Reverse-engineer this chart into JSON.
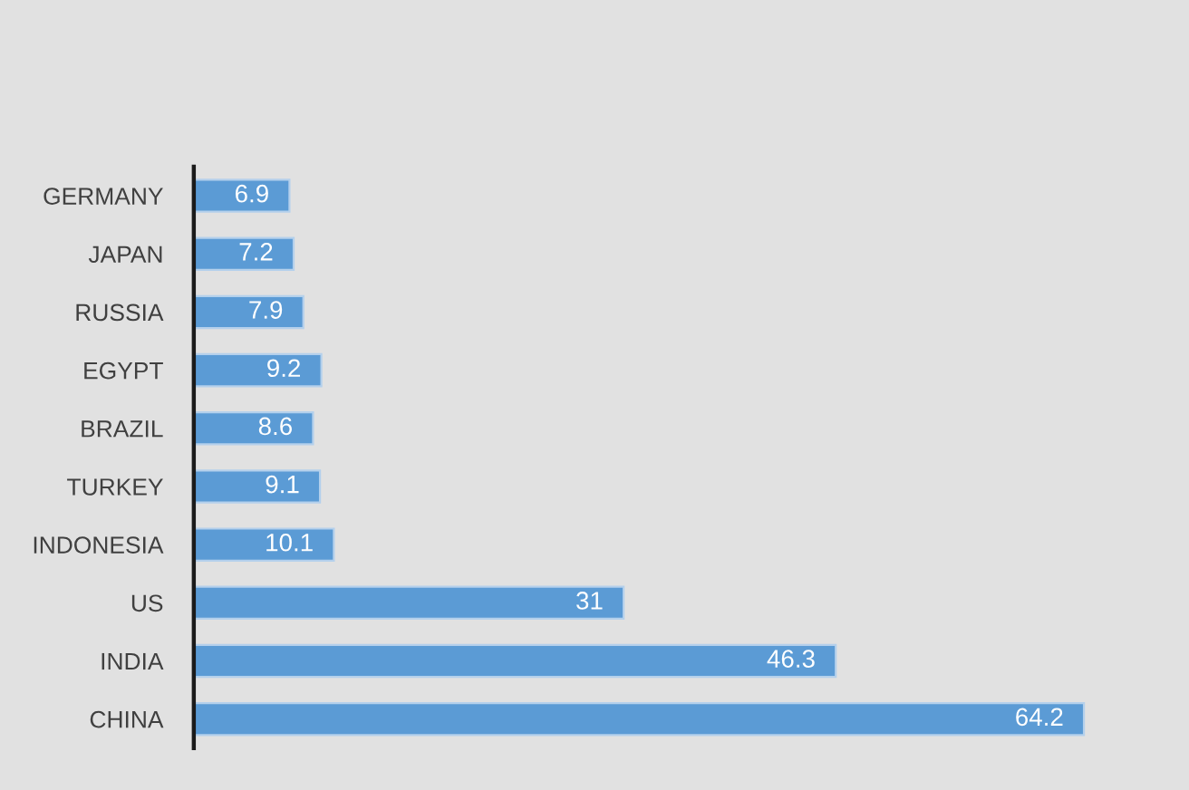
{
  "chart_data": {
    "type": "bar",
    "orientation": "horizontal",
    "categories": [
      "GERMANY",
      "JAPAN",
      "RUSSIA",
      "EGYPT",
      "BRAZIL",
      "TURKEY",
      "INDONESIA",
      "US",
      "INDIA",
      "CHINA"
    ],
    "values": [
      6.9,
      7.2,
      7.9,
      9.2,
      8.6,
      9.1,
      10.1,
      31,
      46.3,
      64.2
    ],
    "color": "#5b9bd5",
    "data_labels": true,
    "tick_labels": "y"
  }
}
